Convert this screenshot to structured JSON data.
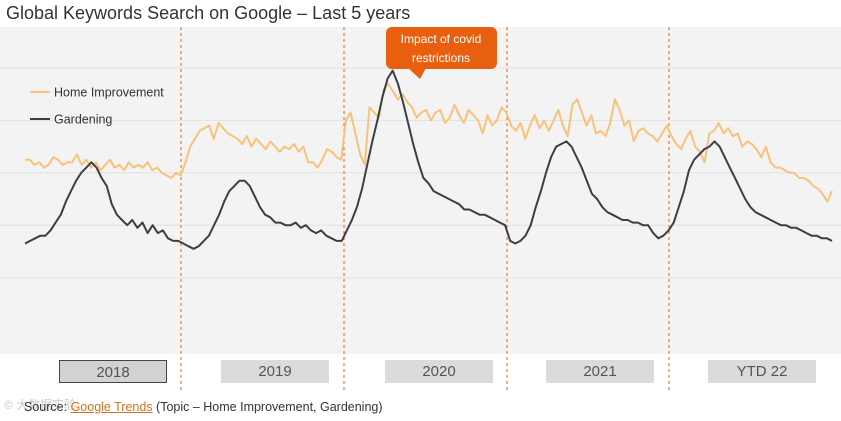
{
  "title": "Global Keywords Search on Google – Last 5 years",
  "chart_data": {
    "type": "line",
    "title": "Global Keywords Search on Google – Last 5 years",
    "ylim": [
      0,
      100
    ],
    "ygrid": [
      20,
      40,
      60,
      80,
      100
    ],
    "series": [
      {
        "name": "Home Improvement",
        "color": "#f8c27a",
        "values": [
          65,
          65,
          63,
          64,
          62,
          63,
          66,
          65,
          63,
          64,
          64,
          67,
          63,
          65,
          62,
          64,
          61,
          63,
          65,
          62,
          63,
          61,
          64,
          62,
          63,
          62,
          64,
          61,
          62,
          60,
          59,
          58,
          60,
          59,
          64,
          70,
          73,
          76,
          77,
          78,
          73,
          79,
          77,
          75,
          74,
          73,
          71,
          74,
          70,
          73,
          71,
          69,
          72,
          70,
          68,
          70,
          69,
          71,
          68,
          70,
          64,
          64,
          62,
          65,
          69,
          68,
          66,
          65,
          80,
          83,
          75,
          67,
          63,
          85,
          83,
          81,
          92,
          94,
          91,
          88,
          90,
          87,
          85,
          81,
          83,
          84,
          80,
          83,
          84,
          79,
          81,
          86,
          82,
          79,
          84,
          82,
          80,
          75,
          82,
          78,
          80,
          85,
          83,
          78,
          76,
          79,
          73,
          78,
          82,
          77,
          80,
          76,
          80,
          84,
          78,
          74,
          86,
          88,
          83,
          78,
          82,
          75,
          76,
          74,
          79,
          88,
          84,
          78,
          80,
          72,
          76,
          77,
          75,
          74,
          72,
          75,
          78,
          74,
          71,
          69,
          73,
          76,
          70,
          68,
          64,
          75,
          76,
          79,
          75,
          77,
          74,
          75,
          70,
          72,
          71,
          69,
          66,
          70,
          64,
          62,
          62,
          61,
          60,
          60,
          58,
          58,
          57,
          55,
          54,
          52,
          49,
          53
        ],
        "values_note": "Approximate weekly search interest (0-100), read from the figure"
      },
      {
        "name": "Gardening",
        "color": "#3b3f45",
        "values": [
          33,
          34,
          35,
          36,
          36,
          38,
          41,
          44,
          49,
          53,
          57,
          60,
          62,
          64,
          62,
          58,
          55,
          48,
          44,
          42,
          40,
          42,
          39,
          41,
          37,
          40,
          37,
          38,
          35,
          34,
          34,
          33,
          32,
          31,
          32,
          34,
          36,
          40,
          44,
          49,
          53,
          55,
          57,
          57,
          55,
          51,
          47,
          44,
          43,
          41,
          41,
          40,
          40,
          41,
          39,
          40,
          38,
          37,
          38,
          36,
          35,
          34,
          34,
          38,
          42,
          47,
          54,
          63,
          72,
          80,
          89,
          96,
          99,
          94,
          87,
          79,
          71,
          64,
          58,
          56,
          53,
          52,
          51,
          50,
          49,
          48,
          46,
          46,
          45,
          44,
          44,
          43,
          42,
          41,
          40,
          34,
          33,
          34,
          36,
          40,
          47,
          53,
          60,
          66,
          70,
          71,
          72,
          70,
          66,
          62,
          57,
          52,
          50,
          47,
          45,
          44,
          43,
          42,
          42,
          41,
          41,
          40,
          40,
          37,
          35,
          36,
          38,
          41,
          47,
          53,
          61,
          65,
          67,
          69,
          70,
          72,
          70,
          66,
          62,
          58,
          54,
          50,
          47,
          45,
          44,
          43,
          42,
          41,
          40,
          40,
          39,
          39,
          38,
          37,
          36,
          36,
          35,
          35,
          34
        ],
        "values_note": "Approximate weekly search interest (0-100), read from the figure"
      }
    ],
    "legend": [
      "Home Improvement",
      "Gardening"
    ],
    "legend_position": "top-left",
    "year_labels": [
      "2018",
      "2019",
      "2020",
      "2021",
      "YTD 22"
    ],
    "selected_year": "2018",
    "annotation": {
      "text_line1": "Impact of covid",
      "text_line2": "restrictions",
      "color": "#e8600f",
      "points_to": "2020 peak"
    }
  },
  "source": {
    "prefix": "Source: ",
    "link": "Google Trends",
    "suffix": " (Topic – Home Improvement, Gardening)"
  },
  "watermark": "© 大数据实验"
}
